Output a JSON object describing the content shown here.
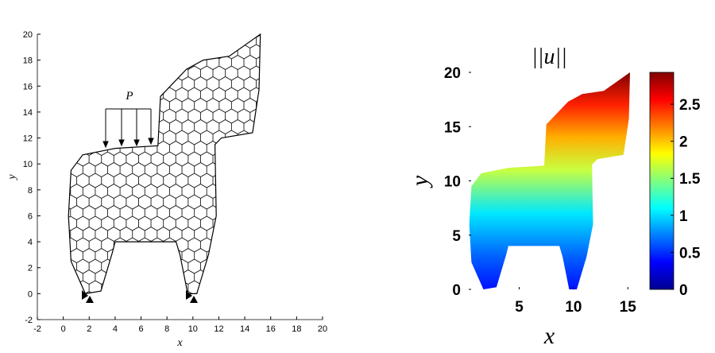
{
  "chart_data": [
    {
      "type": "mesh",
      "xlabel": "x",
      "ylabel": "y",
      "annotation": "P",
      "xlim": [
        -2,
        20
      ],
      "ylim": [
        -2,
        20
      ],
      "xticks": [
        -2,
        0,
        2,
        4,
        6,
        8,
        10,
        12,
        14,
        16,
        18,
        20
      ],
      "yticks": [
        -2,
        0,
        2,
        4,
        6,
        8,
        10,
        12,
        14,
        16,
        18,
        20
      ],
      "outline_x": [
        1.7,
        2.9,
        3.8,
        4,
        8.7,
        9,
        9.6,
        10.3,
        11.2,
        11.8,
        11.7,
        12.2,
        14.6,
        15.1,
        15.2,
        12.8,
        10.8,
        9.5,
        7.5,
        7.3,
        4,
        1.5,
        0.6,
        0.4,
        0.6
      ],
      "outline_y": [
        0,
        0.2,
        3.2,
        4,
        4,
        3,
        0,
        0,
        3,
        6,
        11.5,
        12,
        12.4,
        15.7,
        20,
        18.3,
        18,
        17.3,
        15.2,
        11.4,
        11.2,
        10.7,
        9.5,
        6,
        2.5
      ]
    },
    {
      "type": "surface",
      "title": "||u||",
      "xlabel": "x",
      "ylabel": "y",
      "xlim": [
        0.35,
        15.2
      ],
      "ylim": [
        0,
        20
      ],
      "xticks": [
        5,
        10,
        15
      ],
      "yticks": [
        0,
        5,
        10,
        15,
        20
      ],
      "outline_x": [
        1.7,
        2.9,
        3.8,
        4,
        8.7,
        9,
        9.6,
        10.3,
        11.2,
        11.8,
        11.7,
        12.2,
        14.6,
        15.1,
        15.2,
        12.8,
        10.8,
        9.5,
        7.5,
        7.3,
        4,
        1.5,
        0.6,
        0.4,
        0.6
      ],
      "outline_y": [
        0,
        0.2,
        3.2,
        4,
        4,
        3,
        0,
        0,
        3,
        6,
        11.5,
        12,
        12.4,
        15.7,
        20,
        18.3,
        18,
        17.3,
        15.2,
        11.4,
        11.2,
        10.7,
        9.5,
        6,
        2.5
      ],
      "clim": [
        0,
        2.93
      ],
      "cticks": [
        0,
        0.5,
        1,
        1.5,
        2,
        2.5
      ]
    }
  ]
}
